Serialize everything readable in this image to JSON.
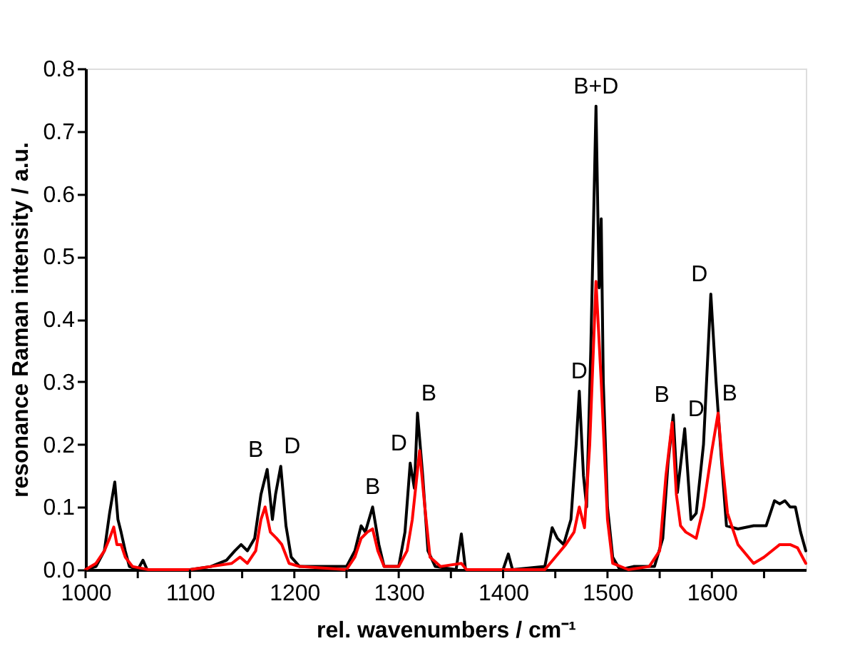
{
  "chart_data": {
    "type": "line",
    "xlabel": "rel. wavenumbers / cm⁻¹",
    "ylabel": "resonance Raman intensity / a.u.",
    "xlim": [
      1000,
      1690
    ],
    "ylim": [
      0,
      0.8
    ],
    "xticks": [
      1000,
      {
        "value": 1050,
        "label": null
      },
      1100,
      {
        "value": 1150,
        "label": null
      },
      1200,
      {
        "value": 1250,
        "label": null
      },
      1300,
      {
        "value": 1350,
        "label": null
      },
      1400,
      {
        "value": 1450,
        "label": null
      },
      1500,
      {
        "value": 1550,
        "label": null
      },
      1600,
      {
        "value": 1650,
        "label": null
      }
    ],
    "yticks": [
      {
        "value": 0,
        "label": "0.0"
      },
      {
        "value": 0.1,
        "label": "0.1"
      },
      {
        "value": 0.2,
        "label": "0.2"
      },
      {
        "value": 0.3,
        "label": "0.3"
      },
      {
        "value": 0.4,
        "label": "0.4"
      },
      {
        "value": 0.5,
        "label": "0.5"
      },
      {
        "value": 0.6,
        "label": "0.6"
      },
      {
        "value": 0.7,
        "label": "0.7"
      },
      {
        "value": 0.8,
        "label": "0.8"
      }
    ],
    "grid": false,
    "legend": false,
    "marker": "none",
    "line_style": "solid",
    "series": [
      {
        "color": "#000000",
        "x": [
          1000,
          1010,
          1018,
          1023,
          1028,
          1031,
          1034,
          1038,
          1042,
          1050,
          1055,
          1059,
          1100,
          1120,
          1135,
          1143,
          1149,
          1155,
          1162,
          1168,
          1174,
          1179,
          1182,
          1187,
          1192,
          1197,
          1205,
          1230,
          1250,
          1258,
          1264,
          1268,
          1275,
          1281,
          1286,
          1300,
          1306,
          1311,
          1315,
          1318,
          1323,
          1328,
          1335,
          1355,
          1360,
          1364,
          1400,
          1405,
          1409,
          1440,
          1444,
          1447,
          1452,
          1458,
          1465,
          1470,
          1473,
          1477,
          1480,
          1484,
          1489,
          1492,
          1494,
          1496,
          1500,
          1505,
          1512,
          1525,
          1545,
          1553,
          1558,
          1563,
          1567,
          1574,
          1580,
          1585,
          1592,
          1599,
          1604,
          1609,
          1614,
          1625,
          1640,
          1652,
          1660,
          1665,
          1670,
          1675,
          1680,
          1685,
          1690
        ],
        "values": [
          0.0,
          0.005,
          0.03,
          0.09,
          0.14,
          0.08,
          0.06,
          0.03,
          0.005,
          0.0,
          0.015,
          0.0,
          0.0,
          0.005,
          0.015,
          0.03,
          0.04,
          0.03,
          0.05,
          0.12,
          0.16,
          0.08,
          0.12,
          0.165,
          0.07,
          0.02,
          0.005,
          0.005,
          0.005,
          0.03,
          0.07,
          0.06,
          0.1,
          0.04,
          0.005,
          0.005,
          0.06,
          0.17,
          0.13,
          0.25,
          0.15,
          0.03,
          0.005,
          0.0,
          0.057,
          0.0,
          0.0,
          0.025,
          0.0,
          0.005,
          0.04,
          0.067,
          0.05,
          0.04,
          0.08,
          0.2,
          0.285,
          0.15,
          0.1,
          0.35,
          0.74,
          0.45,
          0.56,
          0.3,
          0.1,
          0.02,
          0.0,
          0.005,
          0.005,
          0.05,
          0.17,
          0.247,
          0.123,
          0.225,
          0.08,
          0.09,
          0.2,
          0.44,
          0.3,
          0.18,
          0.07,
          0.065,
          0.07,
          0.07,
          0.11,
          0.105,
          0.11,
          0.1,
          0.1,
          0.06,
          0.03
        ]
      },
      {
        "color": "#ff0000",
        "x": [
          1000,
          1010,
          1018,
          1023,
          1027,
          1030,
          1034,
          1038,
          1045,
          1060,
          1100,
          1120,
          1140,
          1148,
          1155,
          1163,
          1168,
          1172,
          1177,
          1183,
          1188,
          1195,
          1205,
          1250,
          1258,
          1264,
          1270,
          1275,
          1280,
          1286,
          1300,
          1308,
          1313,
          1320,
          1325,
          1330,
          1340,
          1360,
          1365,
          1440,
          1450,
          1460,
          1468,
          1473,
          1478,
          1483,
          1489,
          1494,
          1500,
          1505,
          1520,
          1540,
          1550,
          1556,
          1562,
          1566,
          1570,
          1575,
          1585,
          1592,
          1600,
          1606,
          1610,
          1615,
          1625,
          1640,
          1650,
          1665,
          1675,
          1682,
          1690
        ],
        "values": [
          0.0,
          0.01,
          0.03,
          0.05,
          0.068,
          0.04,
          0.04,
          0.02,
          0.005,
          0.0,
          0.0,
          0.005,
          0.01,
          0.02,
          0.01,
          0.03,
          0.08,
          0.1,
          0.06,
          0.05,
          0.04,
          0.01,
          0.005,
          0.0,
          0.02,
          0.05,
          0.06,
          0.065,
          0.03,
          0.005,
          0.005,
          0.03,
          0.08,
          0.19,
          0.1,
          0.02,
          0.005,
          0.01,
          0.0,
          0.0,
          0.02,
          0.04,
          0.06,
          0.1,
          0.067,
          0.2,
          0.46,
          0.3,
          0.08,
          0.01,
          0.0,
          0.005,
          0.03,
          0.15,
          0.235,
          0.12,
          0.07,
          0.06,
          0.05,
          0.1,
          0.19,
          0.25,
          0.17,
          0.09,
          0.04,
          0.01,
          0.02,
          0.04,
          0.04,
          0.035,
          0.01
        ]
      }
    ],
    "annotations": [
      {
        "text": "B",
        "x": 1174,
        "y": 0.16
      },
      {
        "text": "D",
        "x": 1187,
        "y": 0.165
      },
      {
        "text": "B",
        "x": 1275,
        "y": 0.1
      },
      {
        "text": "D",
        "x": 1311,
        "y": 0.17
      },
      {
        "text": "B",
        "x": 1318,
        "y": 0.25
      },
      {
        "text": "D",
        "x": 1473,
        "y": 0.285
      },
      {
        "text": "B+D",
        "x": 1489,
        "y": 0.74
      },
      {
        "text": "B",
        "x": 1563,
        "y": 0.247
      },
      {
        "text": "D",
        "x": 1574,
        "y": 0.225
      },
      {
        "text": "D",
        "x": 1599,
        "y": 0.44
      },
      {
        "text": "B",
        "x": 1606,
        "y": 0.25
      }
    ]
  }
}
